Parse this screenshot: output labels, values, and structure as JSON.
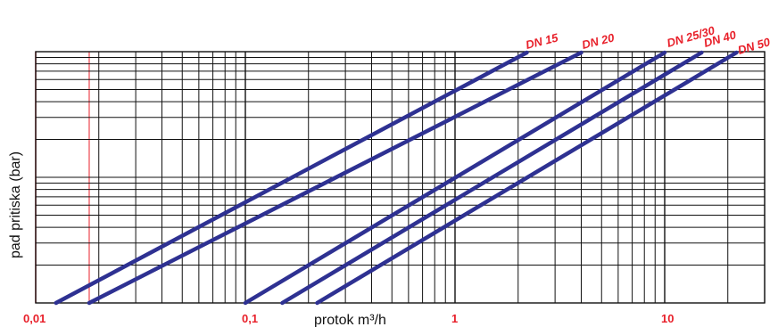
{
  "chart_data": {
    "type": "line",
    "title": "",
    "xlabel": "protok m³/h",
    "ylabel": "pad pritiska (bar)",
    "x_scale": "log",
    "xlim": [
      0.01,
      50
    ],
    "x_ticks": [
      {
        "value": 0.01,
        "label": "0,01"
      },
      {
        "value": 0.1,
        "label": "0,1"
      },
      {
        "value": 1,
        "label": "1"
      },
      {
        "value": 10,
        "label": "10"
      }
    ],
    "x_ticks_in_red": [
      0.01,
      0.018
    ],
    "y_tick_labels_shown": false,
    "grid": true,
    "series": [
      {
        "name": "DN 15",
        "x_start": 0.0125,
        "x_end": 2.2
      },
      {
        "name": "DN 20",
        "x_start": 0.018,
        "x_end": 4.0
      },
      {
        "name": "DN 25/30",
        "x_start": 0.1,
        "x_end": 10
      },
      {
        "name": "DN 40",
        "x_start": 0.15,
        "x_end": 15
      },
      {
        "name": "DN 50",
        "x_start": 0.22,
        "x_end": 22
      }
    ],
    "colors": {
      "series": "#2e3192",
      "grid": "#111111",
      "accent": "#e8202a"
    }
  }
}
